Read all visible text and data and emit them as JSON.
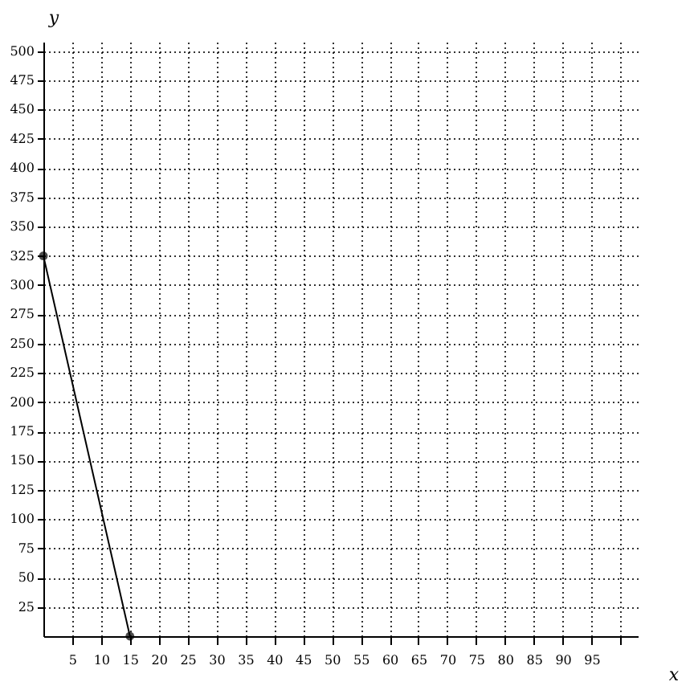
{
  "chart_data": {
    "type": "line",
    "xlabel": "x",
    "ylabel": "y",
    "x": [
      0,
      15
    ],
    "series": [
      {
        "color": "#000000",
        "values": [
          325,
          0
        ]
      }
    ],
    "xlim": [
      0,
      103
    ],
    "ylim": [
      0,
      508
    ],
    "xticks": [
      5,
      10,
      15,
      20,
      25,
      30,
      35,
      40,
      45,
      50,
      55,
      60,
      65,
      70,
      75,
      80,
      85,
      90,
      95,
      {
        "value": 100,
        "label": null
      }
    ],
    "yticks": [
      25,
      50,
      75,
      100,
      125,
      150,
      175,
      200,
      225,
      250,
      275,
      300,
      325,
      350,
      375,
      400,
      425,
      450,
      475,
      500
    ],
    "grid": true,
    "marker": "circle",
    "line_style": "solid"
  }
}
